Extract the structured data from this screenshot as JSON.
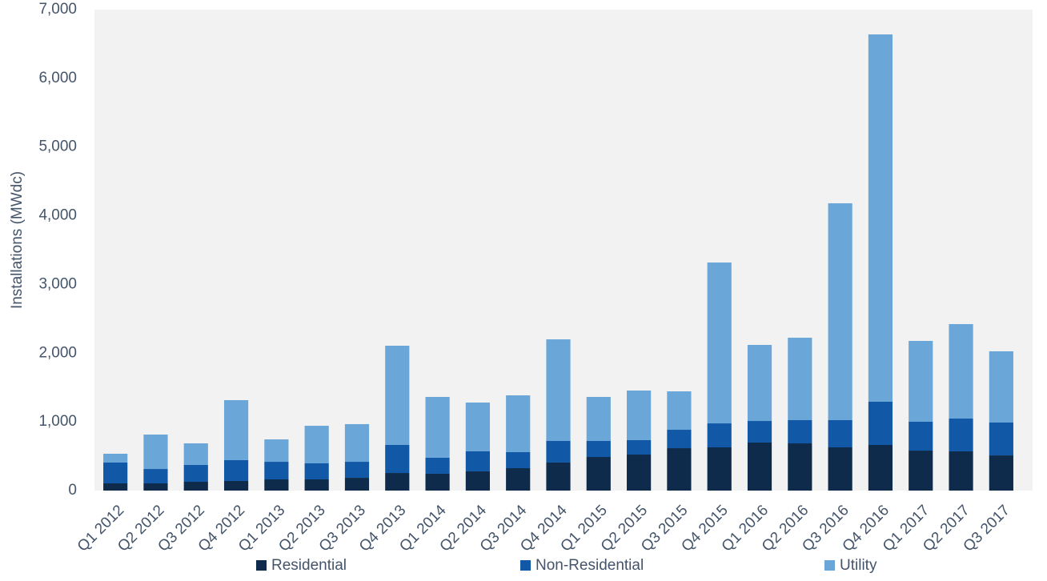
{
  "chart_data": {
    "type": "stacked-bar",
    "y_label": "Installations (MWdc)",
    "categories": [
      "Q1 2012",
      "Q2 2012",
      "Q3 2012",
      "Q4 2012",
      "Q1 2013",
      "Q2 2013",
      "Q3 2013",
      "Q4 2013",
      "Q1 2014",
      "Q2 2014",
      "Q3 2014",
      "Q4 2014",
      "Q1 2015",
      "Q2 2015",
      "Q3 2015",
      "Q4 2015",
      "Q1 2016",
      "Q2 2016",
      "Q3 2016",
      "Q4 2016",
      "Q1 2017",
      "Q2 2017",
      "Q3 2017"
    ],
    "series": [
      {
        "name": "Residential",
        "color": "#0e2b4b",
        "values": [
          105,
          105,
          128,
          140,
          163,
          163,
          186,
          256,
          245,
          280,
          326,
          408,
          489,
          524,
          617,
          629,
          699,
          687,
          629,
          664,
          582,
          571,
          512
        ]
      },
      {
        "name": "Non-Residential",
        "color": "#1158a7",
        "values": [
          303,
          209,
          245,
          303,
          256,
          233,
          233,
          408,
          233,
          291,
          233,
          314,
          233,
          210,
          268,
          349,
          314,
          338,
          396,
          629,
          420,
          477,
          478
        ]
      },
      {
        "name": "Utility",
        "color": "#6ba6d8",
        "values": [
          128,
          501,
          314,
          873,
          326,
          547,
          548,
          1444,
          885,
          710,
          827,
          1479,
          641,
          722,
          559,
          2341,
          1107,
          1200,
          3156,
          5346,
          1176,
          1375,
          1037
        ]
      }
    ],
    "ylim": [
      0,
      7000
    ],
    "yticks": [
      0,
      {
        "value": 1000,
        "label": "1,000"
      },
      {
        "value": 2000,
        "label": "2,000"
      },
      {
        "value": 3000,
        "label": "3,000"
      },
      {
        "value": 4000,
        "label": "4,000"
      },
      {
        "value": 5000,
        "label": "5,000"
      },
      {
        "value": 6000,
        "label": "6,000"
      },
      {
        "value": 7000,
        "label": "7,000"
      }
    ],
    "background": "#f2f2f2",
    "legend": "bottom"
  }
}
